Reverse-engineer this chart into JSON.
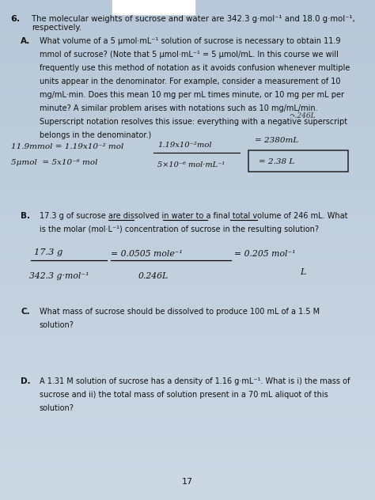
{
  "bg_color_top": "#b8c8d8",
  "bg_color_bottom": "#c8d4e0",
  "page_number": "17",
  "q6_header": "6.",
  "q6_line1": "The molecular weights of sucrose and water are 342.3 g·mol⁻¹ and 18.0 g·mol⁻¹,",
  "q6_line2": "respectively.",
  "sec_A_label": "A.",
  "sec_A_lines": [
    "What volume of a 5 μmol·mL⁻¹ solution of sucrose is necessary to obtain 11.9",
    "mmol of sucrose? (Note that 5 μmol·mL⁻¹ = 5 μmol/mL. In this course we will",
    "frequently use this method of notation as it avoids confusion whenever multiple",
    "units appear in the denominator. For example, consider a measurement of 10",
    "mg/mL·min. Does this mean 10 mg per mL times minute, or 10 mg per mL per",
    "minute? A similar problem arises with notations such as 10 mg/mL/min.",
    "Superscript notation resolves this issue: everything with a negative superscript",
    "belongs in the denominator.)"
  ],
  "hw_A_left1": "11.9mmol = 1.19x10⁻² mol",
  "hw_A_left2": "5μmol  = 5x10⁻⁶ mol",
  "hw_A_frac_num": "1.19x10⁻²mol",
  "hw_A_frac_den": "5×10⁻⁶ mol·mL⁻¹",
  "hw_A_eq1": "= 2380mL",
  "hw_A_eq2": "= 2.38 L",
  "hw_A_note": "↷.246L",
  "sec_B_label": "B.",
  "sec_B_line1": "17.3 g of sucrose are dissolved in water to a final total volume of 246 mL. What",
  "sec_B_line2": "is the molar (mol·L⁻¹) concentration of sucrose in the resulting solution?",
  "sec_B_underline_water": [
    0.288,
    0.356
  ],
  "sec_B_underline_final_total": [
    0.434,
    0.553
  ],
  "sec_B_underline_246mL": [
    0.613,
    0.686
  ],
  "hw_B_frac_num": "17.3 g",
  "hw_B_frac_den": "342.3 g·mol⁻¹",
  "hw_B_mid_num": "= 0.0505 mole⁻¹",
  "hw_B_mid_den": "0.246L",
  "hw_B_result": "= 0.205 mol⁻¹",
  "hw_B_result2": "L",
  "sec_C_label": "C.",
  "sec_C_line1": "What mass of sucrose should be dissolved to produce 100 mL of a 1.5 M",
  "sec_C_line2": "solution?",
  "sec_D_label": "D.",
  "sec_D_line1": "A 1.31 M solution of sucrose has a density of 1.16 g·mL⁻¹. What is i) the mass of",
  "sec_D_line2": "sucrose and ii) the total mass of solution present in a 70 mL aliquot of this",
  "sec_D_line3": "solution?"
}
